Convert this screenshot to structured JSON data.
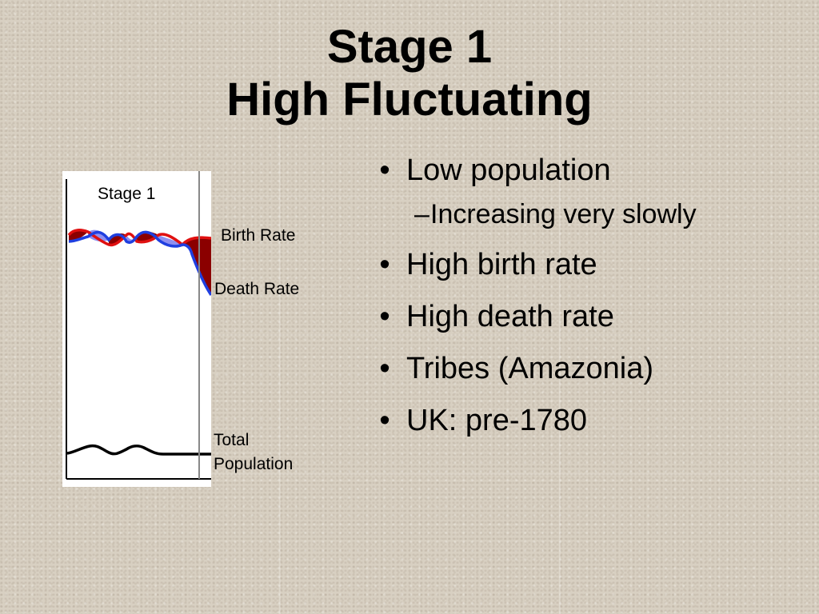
{
  "slide": {
    "title_line1": "Stage 1",
    "title_line2": "High Fluctuating"
  },
  "diagram": {
    "stage_label": "Stage 1",
    "birth_rate_label": "Birth Rate",
    "death_rate_label": "Death Rate",
    "total_population_label_line1": "Total",
    "total_population_label_line2": "Population",
    "colors": {
      "birth_rate_line": "#e01010",
      "death_rate_line": "#1f3fe0",
      "natural_increase_fill": "#8b0000",
      "natural_decrease_fill": "#8f8ff0",
      "population_line": "#000000",
      "axis": "#000000",
      "stage_divider": "#888888"
    }
  },
  "bullets": [
    {
      "marker": "•",
      "text": "Low population",
      "level": 1
    },
    {
      "marker": "–",
      "text": "Increasing very slowly",
      "level": 2
    },
    {
      "marker": "•",
      "text": "High birth rate",
      "level": 1
    },
    {
      "marker": "•",
      "text": "High death rate",
      "level": 1
    },
    {
      "marker": "•",
      "text": "Tribes (Amazonia)",
      "level": 1
    },
    {
      "marker": "•",
      "text": "UK: pre-1780",
      "level": 1
    }
  ]
}
